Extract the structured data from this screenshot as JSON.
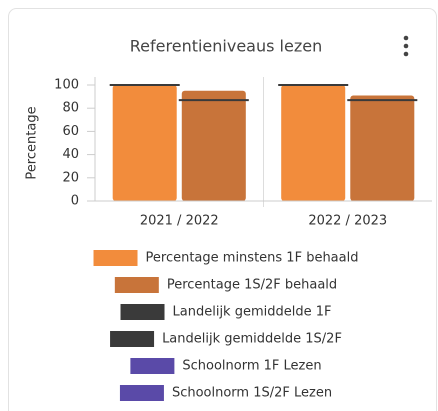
{
  "chart_data": {
    "type": "bar",
    "title": "Referentieniveaus lezen",
    "y_label": "Percentage",
    "categories": [
      "2021 / 2022",
      "2022 / 2023"
    ],
    "series": [
      {
        "name": "Percentage minstens 1F behaald",
        "color": "#f28c3c",
        "kind": "bar",
        "values": [
          100,
          100
        ]
      },
      {
        "name": "Percentage 1S/2F behaald",
        "color": "#c8743a",
        "kind": "bar",
        "values": [
          95,
          91
        ]
      },
      {
        "name": "Landelijk gemiddelde 1F",
        "color": "#3a3a3a",
        "kind": "level",
        "bar": 0,
        "values": [
          100,
          100
        ]
      },
      {
        "name": "Landelijk gemiddelde 1S/2F",
        "color": "#3a3a3a",
        "kind": "level",
        "bar": 1,
        "values": [
          87,
          87
        ]
      },
      {
        "name": "Schoolnorm 1F Lezen",
        "color": "#5a4aa8",
        "kind": "level",
        "bar": 0,
        "values": [
          null,
          null
        ]
      },
      {
        "name": "Schoolnorm 1S/2F Lezen",
        "color": "#5a4aa8",
        "kind": "level",
        "bar": 1,
        "values": [
          null,
          null
        ]
      }
    ],
    "ylim": [
      0,
      100
    ],
    "yticks": [
      0,
      20,
      40,
      60,
      80,
      100
    ]
  }
}
